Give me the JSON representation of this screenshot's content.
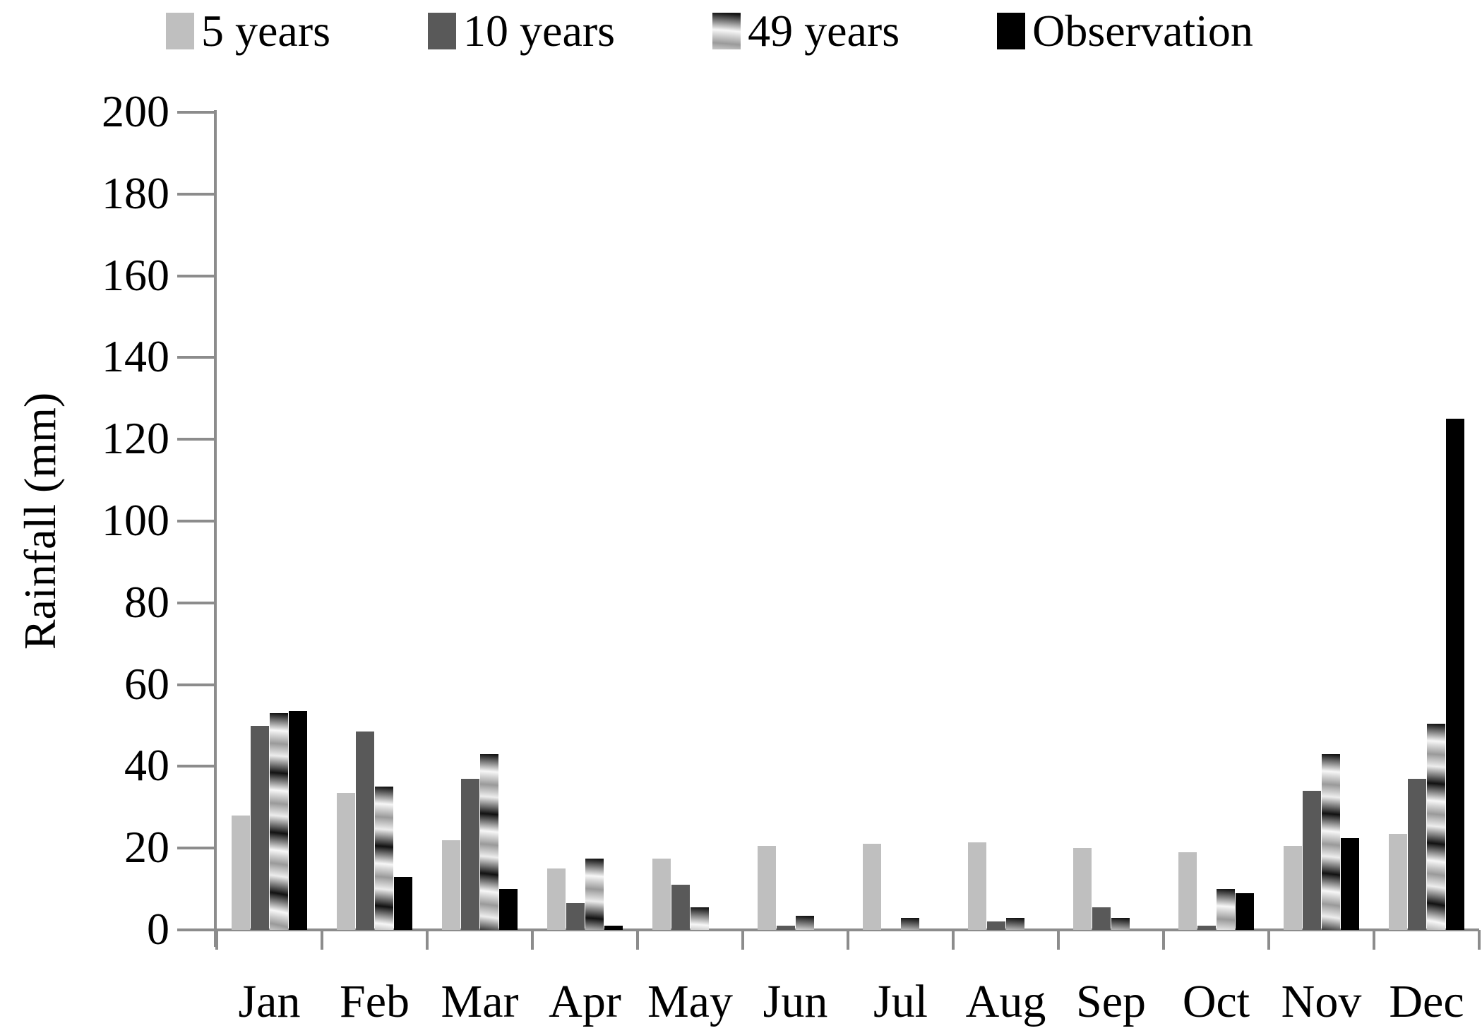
{
  "chart_data": {
    "type": "bar",
    "title": "",
    "xlabel": "",
    "ylabel": "Rainfall (mm)",
    "ylim": [
      0,
      200
    ],
    "ytick_step": 20,
    "grid": false,
    "legend_position": "top",
    "axis_color": "#8c8c8c",
    "categories": [
      "Jan",
      "Feb",
      "Mar",
      "Apr",
      "May",
      "Jun",
      "Jul",
      "Aug",
      "Sep",
      "Oct",
      "Nov",
      "Dec"
    ],
    "series": [
      {
        "name": "5 years",
        "fill": "solid-light",
        "color": "#bfbfbf",
        "values": [
          28,
          33.5,
          22,
          15,
          17.5,
          20.5,
          21,
          21.5,
          20,
          19,
          20.5,
          23.5
        ]
      },
      {
        "name": "10 years",
        "fill": "solid-dark",
        "color": "#595959",
        "values": [
          50,
          48.5,
          37,
          6.5,
          11,
          1,
          0,
          2,
          5.5,
          1,
          34,
          37
        ]
      },
      {
        "name": "49 years",
        "fill": "textured",
        "color": "#b0b0b0",
        "values": [
          53,
          35,
          43,
          17.5,
          5.5,
          3.5,
          3,
          3,
          3,
          10,
          43,
          50.5
        ]
      },
      {
        "name": "Observation",
        "fill": "solid-black",
        "color": "#000000",
        "values": [
          53.5,
          13,
          10,
          1,
          0,
          0,
          0,
          0,
          0,
          9,
          22.5,
          125
        ]
      }
    ]
  }
}
